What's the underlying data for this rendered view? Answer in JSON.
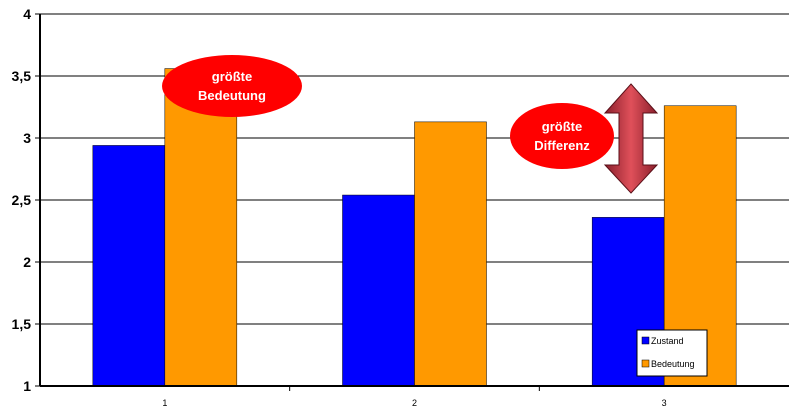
{
  "chart_data": {
    "type": "bar",
    "categories": [
      "1",
      "2",
      "3"
    ],
    "series": [
      {
        "name": "Zustand",
        "values": [
          2.94,
          2.54,
          2.36
        ],
        "color": "#0000ff"
      },
      {
        "name": "Bedeutung",
        "values": [
          3.56,
          3.13,
          3.26
        ],
        "color": "#ff9900"
      }
    ],
    "ylim": [
      1,
      4
    ],
    "yticks": [
      "1",
      "1,5",
      "2",
      "2,5",
      "3",
      "3,5",
      "4"
    ],
    "grid": true,
    "legend_position": "bottom-right",
    "annotations": [
      {
        "text_lines": [
          "größte",
          "Bedeutung"
        ],
        "shape": "ellipse",
        "color": "#ff0000"
      },
      {
        "text_lines": [
          "größte",
          "Differenz"
        ],
        "shape": "ellipse",
        "color": "#ff0000"
      },
      {
        "shape": "double-arrow",
        "color": "#cc3344"
      }
    ]
  }
}
